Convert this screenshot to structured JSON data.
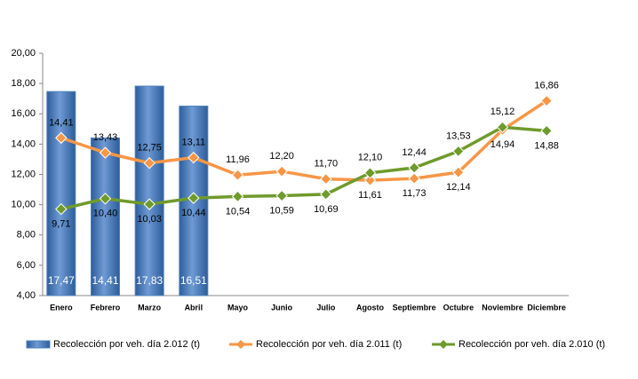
{
  "chart_data": {
    "type": "bar-line",
    "categories": [
      "Enero",
      "Febrero",
      "Marzo",
      "Abril",
      "Mayo",
      "Junio",
      "Julio",
      "Agosto",
      "Septiembre",
      "Octubre",
      "Noviembre",
      "Diciembre"
    ],
    "series": [
      {
        "name": "Recolección por veh. día 2.012 (t)",
        "type": "bar",
        "color": "#4f81bd",
        "values": [
          17.47,
          14.41,
          17.83,
          16.51,
          null,
          null,
          null,
          null,
          null,
          null,
          null,
          null
        ],
        "value_labels": [
          "17,47",
          "14,41",
          "17,83",
          "16,51",
          null,
          null,
          null,
          null,
          null,
          null,
          null,
          null
        ]
      },
      {
        "name": "Recolección por veh. día 2.011 (t)",
        "type": "line",
        "color": "#f79646",
        "values": [
          14.41,
          13.43,
          12.75,
          13.11,
          11.96,
          12.2,
          11.7,
          11.61,
          11.73,
          12.14,
          14.94,
          16.86
        ],
        "value_labels": [
          "14,41",
          "13,43",
          "12,75",
          "13,11",
          "11,96",
          "12,20",
          "11,70",
          "11,61",
          "11,73",
          "12,14",
          "14,94",
          "16,86"
        ]
      },
      {
        "name": "Recolección por veh. día 2.010 (t)",
        "type": "line",
        "color": "#6f9a2c",
        "values": [
          9.71,
          10.4,
          10.03,
          10.44,
          10.54,
          10.59,
          10.69,
          12.1,
          12.44,
          13.53,
          15.12,
          14.88
        ],
        "value_labels": [
          "9,71",
          "10,40",
          "10,03",
          "10,44",
          "10,54",
          "10,59",
          "10,69",
          "12,10",
          "12,44",
          "13,53",
          "15,12",
          "14,88"
        ]
      }
    ],
    "ylim": [
      4,
      20
    ],
    "yticks": [
      {
        "value": 4,
        "label": "4,00"
      },
      {
        "value": 6,
        "label": "6,00"
      },
      {
        "value": 8,
        "label": "8,00"
      },
      {
        "value": 10,
        "label": "10,00"
      },
      {
        "value": 12,
        "label": "12,00"
      },
      {
        "value": 14,
        "label": "14,00"
      },
      {
        "value": 16,
        "label": "16,00"
      },
      {
        "value": 18,
        "label": "18,00"
      },
      {
        "value": 20,
        "label": "20,00"
      }
    ],
    "legend": "bottom"
  }
}
